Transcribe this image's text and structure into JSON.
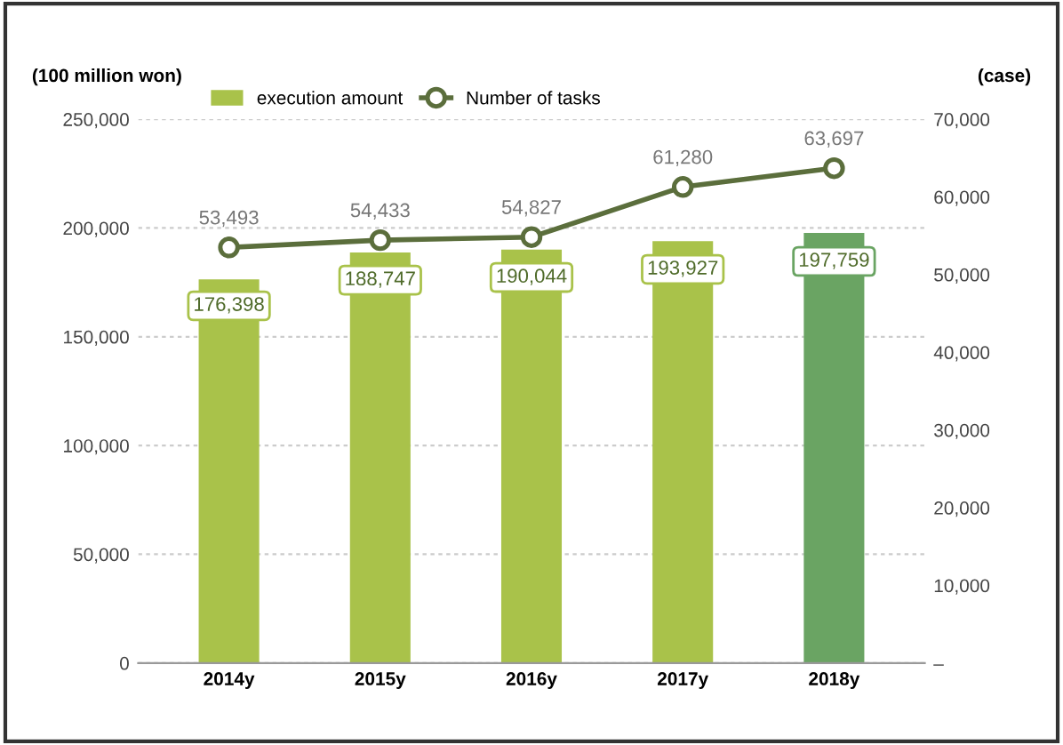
{
  "chart_data": {
    "type": "bar",
    "ylabel": "(100 million won)",
    "y2label": "(case)",
    "categories": [
      "2014y",
      "2015y",
      "2016y",
      "2017y",
      "2018y"
    ],
    "series": [
      {
        "name": "execution amount",
        "color": "#a9c24a",
        "colors": [
          "#a9c24a",
          "#a9c24a",
          "#a9c24a",
          "#a9c24a",
          "#6aa463"
        ],
        "values": [
          176398,
          188747,
          190044,
          193927,
          197759
        ],
        "value_labels": [
          "176,398",
          "188,747",
          "190,044",
          "193,927",
          "197,759"
        ]
      },
      {
        "name": "Number of tasks",
        "type": "line",
        "axis": "y2",
        "color": "#5b6e3c",
        "marker": "circle",
        "values": [
          53493,
          54433,
          54827,
          61280,
          63697
        ],
        "value_labels": [
          "53,493",
          "54,433",
          "54,827",
          "61,280",
          "63,697"
        ]
      }
    ],
    "ylim": [
      0,
      250000
    ],
    "yticks": [
      {
        "value": 0,
        "label": "0"
      },
      {
        "value": 50000,
        "label": "50,000"
      },
      {
        "value": 100000,
        "label": "100,000"
      },
      {
        "value": 150000,
        "label": "150,000"
      },
      {
        "value": 200000,
        "label": "200,000"
      },
      {
        "value": 250000,
        "label": "250,000"
      }
    ],
    "y2lim": [
      0,
      70000
    ],
    "y2ticks": [
      {
        "value": 0,
        "label": "–"
      },
      {
        "value": 10000,
        "label": "10,000"
      },
      {
        "value": 20000,
        "label": "20,000"
      },
      {
        "value": 30000,
        "label": "30,000"
      },
      {
        "value": 40000,
        "label": "40,000"
      },
      {
        "value": 50000,
        "label": "50,000"
      },
      {
        "value": 60000,
        "label": "60,000"
      },
      {
        "value": 70000,
        "label": "70,000"
      }
    ],
    "grid": "y",
    "legend": "top"
  }
}
